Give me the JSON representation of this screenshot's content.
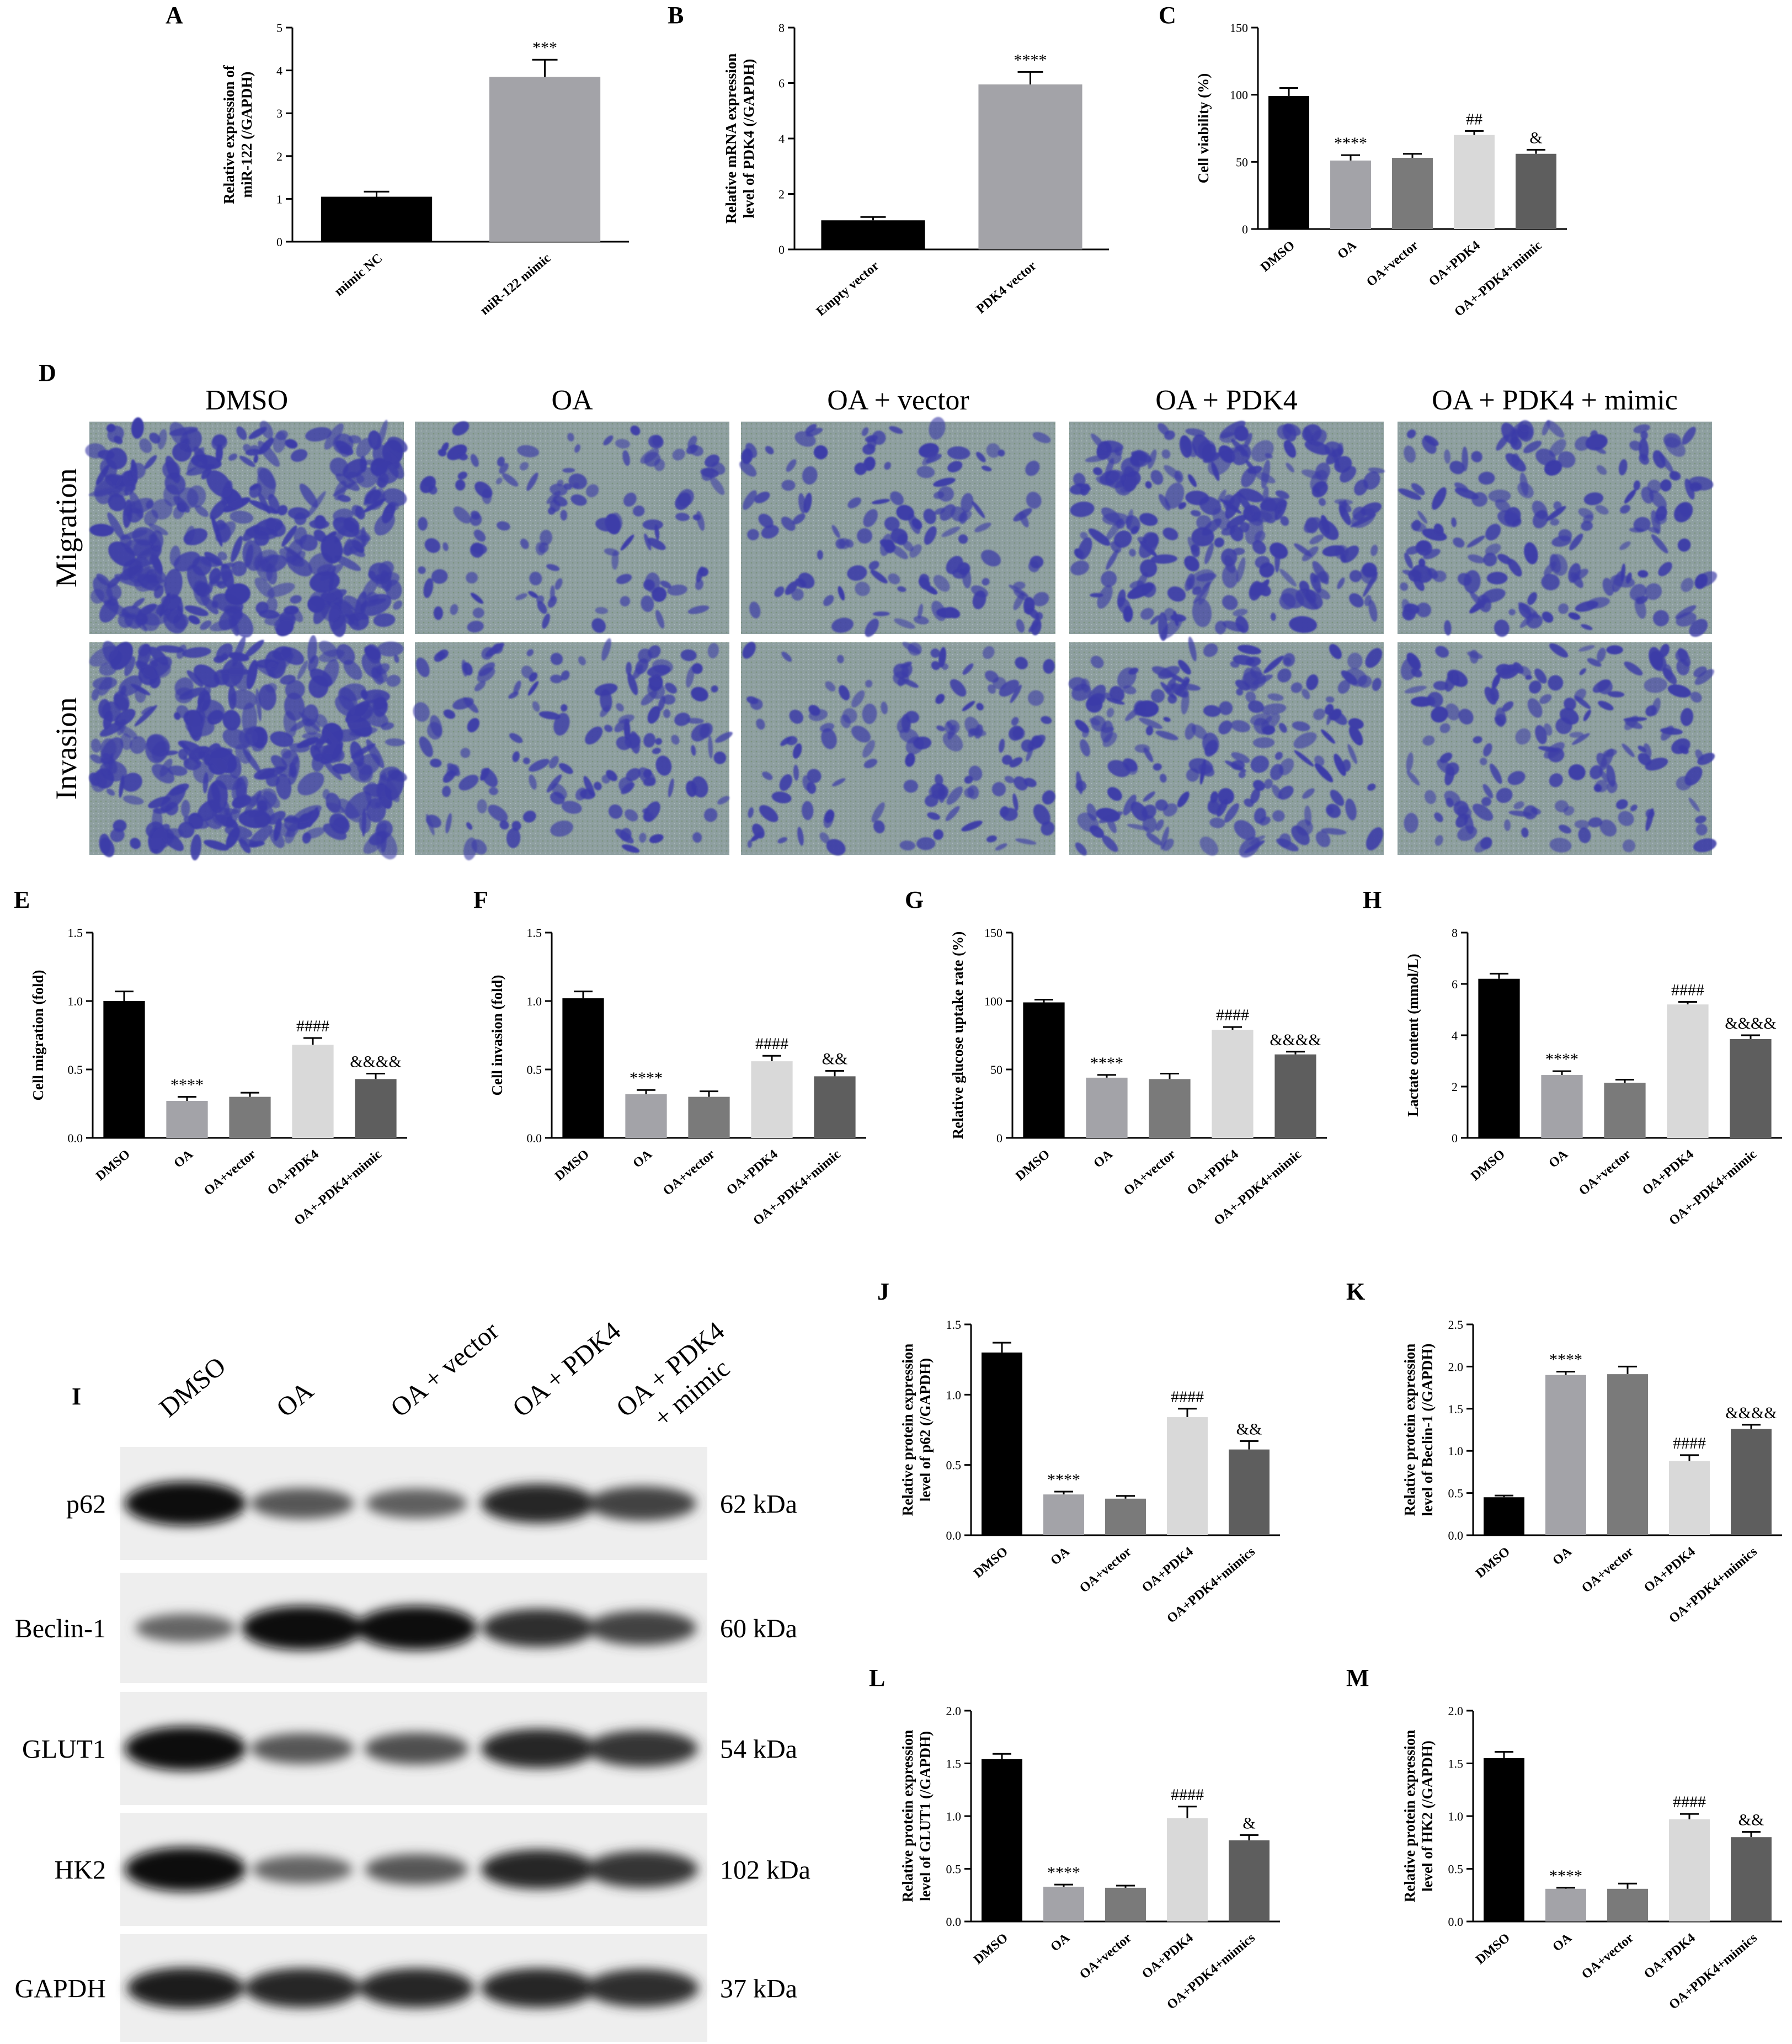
{
  "chart_data": [
    {
      "id": "A",
      "type": "bar",
      "panel_label": "A",
      "ylabel": "Relative expression of miR-122 (/GAPDH)",
      "ylabel_lines": [
        "Relative expression of",
        "miR-122 (/GAPDH)"
      ],
      "categories": [
        "mimic NC",
        "miR-122 mimic"
      ],
      "values": [
        1.05,
        3.85
      ],
      "errors": [
        0.12,
        0.4
      ],
      "annotations": [
        "",
        "***"
      ],
      "colors": [
        "#000000",
        "#a3a3a8"
      ],
      "ylim": [
        0,
        5
      ],
      "yticks": [
        "0",
        "1",
        "2",
        "3",
        "4",
        "5"
      ]
    },
    {
      "id": "B",
      "type": "bar",
      "panel_label": "B",
      "ylabel": "Relative mRNA expression level of PDK4 (/GAPDH)",
      "ylabel_lines": [
        "Relative mRNA expression",
        "level of PDK4 (/GAPDH)"
      ],
      "categories": [
        "Empty vector",
        "PDK4 vector"
      ],
      "values": [
        1.05,
        5.95
      ],
      "errors": [
        0.12,
        0.45
      ],
      "annotations": [
        "",
        "****"
      ],
      "colors": [
        "#000000",
        "#a3a3a8"
      ],
      "ylim": [
        0,
        8
      ],
      "yticks": [
        "0",
        "2",
        "4",
        "6",
        "8"
      ]
    },
    {
      "id": "C",
      "type": "bar",
      "panel_label": "C",
      "ylabel": "Cell viability (%)",
      "ylabel_lines": [
        "Cell viability (%)"
      ],
      "categories": [
        "DMSO",
        "OA",
        "OA+vector",
        "OA+PDK4",
        "OA+-PDK4+mimic"
      ],
      "values": [
        99,
        51,
        53,
        70,
        56
      ],
      "errors": [
        6,
        4,
        3,
        3,
        3
      ],
      "annotations": [
        "",
        "****",
        "",
        "##",
        "&"
      ],
      "colors": [
        "#000000",
        "#a3a3a8",
        "#7a7a7a",
        "#d9d9d9",
        "#5e5e5e"
      ],
      "ylim": [
        0,
        150
      ],
      "yticks": [
        "0",
        "50",
        "100",
        "150"
      ]
    },
    {
      "id": "E",
      "type": "bar",
      "panel_label": "E",
      "ylabel": "Cell migration (fold)",
      "ylabel_lines": [
        "Cell migration (fold)"
      ],
      "categories": [
        "DMSO",
        "OA",
        "OA+vector",
        "OA+PDK4",
        "OA+-PDK4+mimic"
      ],
      "values": [
        1.0,
        0.27,
        0.3,
        0.68,
        0.43
      ],
      "errors": [
        0.07,
        0.03,
        0.03,
        0.05,
        0.04
      ],
      "annotations": [
        "",
        "****",
        "",
        "####",
        "&&&&"
      ],
      "colors": [
        "#000000",
        "#a3a3a8",
        "#7a7a7a",
        "#d9d9d9",
        "#5e5e5e"
      ],
      "ylim": [
        0,
        1.5
      ],
      "yticks": [
        "0.0",
        "0.5",
        "1.0",
        "1.5"
      ]
    },
    {
      "id": "F",
      "type": "bar",
      "panel_label": "F",
      "ylabel": "Cell invasion (fold)",
      "ylabel_lines": [
        "Cell invasion (fold)"
      ],
      "categories": [
        "DMSO",
        "OA",
        "OA+vector",
        "OA+PDK4",
        "OA+-PDK4+mimic"
      ],
      "values": [
        1.02,
        0.32,
        0.3,
        0.56,
        0.45
      ],
      "errors": [
        0.05,
        0.03,
        0.04,
        0.04,
        0.04
      ],
      "annotations": [
        "",
        "****",
        "",
        "####",
        "&&"
      ],
      "colors": [
        "#000000",
        "#a3a3a8",
        "#7a7a7a",
        "#d9d9d9",
        "#5e5e5e"
      ],
      "ylim": [
        0,
        1.5
      ],
      "yticks": [
        "0.0",
        "0.5",
        "1.0",
        "1.5"
      ]
    },
    {
      "id": "G",
      "type": "bar",
      "panel_label": "G",
      "ylabel": "Relative glucose uptake rate (%)",
      "ylabel_lines": [
        "Relative glucose uptake rate (%)"
      ],
      "categories": [
        "DMSO",
        "OA",
        "OA+vector",
        "OA+PDK4",
        "OA+-PDK4+mimic"
      ],
      "values": [
        99,
        44,
        43,
        79,
        61
      ],
      "errors": [
        2,
        2,
        4,
        2,
        2
      ],
      "annotations": [
        "",
        "****",
        "",
        "####",
        "&&&&"
      ],
      "colors": [
        "#000000",
        "#a3a3a8",
        "#7a7a7a",
        "#d9d9d9",
        "#5e5e5e"
      ],
      "ylim": [
        0,
        150
      ],
      "yticks": [
        "0",
        "50",
        "100",
        "150"
      ]
    },
    {
      "id": "H",
      "type": "bar",
      "panel_label": "H",
      "ylabel": "Lactate content (mmol/L)",
      "ylabel_lines": [
        "Lactate content (mmol/L)"
      ],
      "categories": [
        "DMSO",
        "OA",
        "OA+vector",
        "OA+PDK4",
        "OA+-PDK4+mimic"
      ],
      "values": [
        6.2,
        2.45,
        2.15,
        5.2,
        3.85
      ],
      "errors": [
        0.2,
        0.15,
        0.12,
        0.1,
        0.15
      ],
      "annotations": [
        "",
        "****",
        "",
        "####",
        "&&&&"
      ],
      "colors": [
        "#000000",
        "#a3a3a8",
        "#7a7a7a",
        "#d9d9d9",
        "#5e5e5e"
      ],
      "ylim": [
        0,
        8
      ],
      "yticks": [
        "0",
        "2",
        "4",
        "6",
        "8"
      ]
    },
    {
      "id": "J",
      "type": "bar",
      "panel_label": "J",
      "ylabel": "Relative protein expression level of p62 (/GAPDH)",
      "ylabel_lines": [
        "Relative protein expression",
        "level of p62 (/GAPDH)"
      ],
      "categories": [
        "DMSO",
        "OA",
        "OA+vector",
        "OA+PDK4",
        "OA+PDK4+mimics"
      ],
      "values": [
        1.3,
        0.29,
        0.26,
        0.84,
        0.61
      ],
      "errors": [
        0.07,
        0.02,
        0.02,
        0.06,
        0.06
      ],
      "annotations": [
        "",
        "****",
        "",
        "####",
        "&&"
      ],
      "colors": [
        "#000000",
        "#a3a3a8",
        "#7a7a7a",
        "#d9d9d9",
        "#5e5e5e"
      ],
      "ylim": [
        0,
        1.5
      ],
      "yticks": [
        "0.0",
        "0.5",
        "1.0",
        "1.5"
      ]
    },
    {
      "id": "K",
      "type": "bar",
      "panel_label": "K",
      "ylabel": "Relative protein expression level of Beclin-1 (/GAPDH)",
      "ylabel_lines": [
        "Relative protein expression",
        "level of Beclin-1 (/GAPDH)"
      ],
      "categories": [
        "DMSO",
        "OA",
        "OA+vector",
        "OA+PDK4",
        "OA+PDK4+mimics"
      ],
      "values": [
        0.45,
        1.9,
        1.91,
        0.88,
        1.26
      ],
      "errors": [
        0.02,
        0.04,
        0.09,
        0.07,
        0.05
      ],
      "annotations": [
        "",
        "****",
        "",
        "####",
        "&&&&"
      ],
      "colors": [
        "#000000",
        "#a3a3a8",
        "#7a7a7a",
        "#d9d9d9",
        "#5e5e5e"
      ],
      "ylim": [
        0,
        2.5
      ],
      "yticks": [
        "0.0",
        "0.5",
        "1.0",
        "1.5",
        "2.0",
        "2.5"
      ]
    },
    {
      "id": "L",
      "type": "bar",
      "panel_label": "L",
      "ylabel": "Relative protein expression level of GLUT1 (/GAPDH)",
      "ylabel_lines": [
        "Relative protein expression",
        "level of GLUT1 (/GAPDH)"
      ],
      "categories": [
        "DMSO",
        "OA",
        "OA+vector",
        "OA+PDK4",
        "OA+PDK4+mimics"
      ],
      "values": [
        1.54,
        0.33,
        0.32,
        0.98,
        0.77
      ],
      "errors": [
        0.05,
        0.02,
        0.02,
        0.11,
        0.05
      ],
      "annotations": [
        "",
        "****",
        "",
        "####",
        "&"
      ],
      "colors": [
        "#000000",
        "#a3a3a8",
        "#7a7a7a",
        "#d9d9d9",
        "#5e5e5e"
      ],
      "ylim": [
        0,
        2.0
      ],
      "yticks": [
        "0.0",
        "0.5",
        "1.0",
        "1.5",
        "2.0"
      ]
    },
    {
      "id": "M",
      "type": "bar",
      "panel_label": "M",
      "ylabel": "Relative protein expression level of HK2 (/GAPDH)",
      "ylabel_lines": [
        "Relative protein expression",
        "level of HK2 (/GAPDH)"
      ],
      "categories": [
        "DMSO",
        "OA",
        "OA+vector",
        "OA+PDK4",
        "OA+PDK4+mimics"
      ],
      "values": [
        1.55,
        0.31,
        0.31,
        0.97,
        0.8
      ],
      "errors": [
        0.06,
        0.01,
        0.05,
        0.05,
        0.05
      ],
      "annotations": [
        "",
        "****",
        "",
        "####",
        "&&"
      ],
      "colors": [
        "#000000",
        "#a3a3a8",
        "#7a7a7a",
        "#d9d9d9",
        "#5e5e5e"
      ],
      "ylim": [
        0,
        2.0
      ],
      "yticks": [
        "0.0",
        "0.5",
        "1.0",
        "1.5",
        "2.0"
      ]
    }
  ],
  "panel_d": {
    "label": "D",
    "columns": [
      "DMSO",
      "OA",
      "OA + vector",
      "OA + PDK4",
      "OA + PDK4 + mimic"
    ],
    "rows": [
      "Migration",
      "Invasion"
    ],
    "cell_density": [
      [
        1.0,
        0.3,
        0.35,
        0.75,
        0.5
      ],
      [
        1.0,
        0.4,
        0.35,
        0.55,
        0.45
      ]
    ],
    "stain_color": "#3c3ca8",
    "background_color": "#8e9fa0"
  },
  "panel_i": {
    "label": "I",
    "lanes": [
      "DMSO",
      "OA",
      "OA + vector",
      "OA + PDK4",
      "OA + PDK4\n+ mimic"
    ],
    "lanes_line1": [
      "DMSO",
      "OA",
      "OA + vector",
      "OA + PDK4",
      "OA + PDK4"
    ],
    "lanes_line2": [
      "",
      "",
      "",
      "",
      "+ mimic"
    ],
    "proteins": [
      {
        "name": "p62",
        "size": "62 kDa",
        "intensity": [
          1.0,
          0.45,
          0.4,
          0.8,
          0.6
        ]
      },
      {
        "name": "Beclin-1",
        "size": "60 kDa",
        "intensity": [
          0.35,
          1.0,
          1.0,
          0.75,
          0.6
        ]
      },
      {
        "name": "GLUT1",
        "size": "54 kDa",
        "intensity": [
          1.0,
          0.45,
          0.5,
          0.8,
          0.7
        ]
      },
      {
        "name": "HK2",
        "size": "102 kDa",
        "intensity": [
          1.0,
          0.35,
          0.45,
          0.8,
          0.7
        ]
      },
      {
        "name": "GAPDH",
        "size": "37 kDa",
        "intensity": [
          0.85,
          0.8,
          0.8,
          0.8,
          0.75
        ]
      }
    ]
  }
}
